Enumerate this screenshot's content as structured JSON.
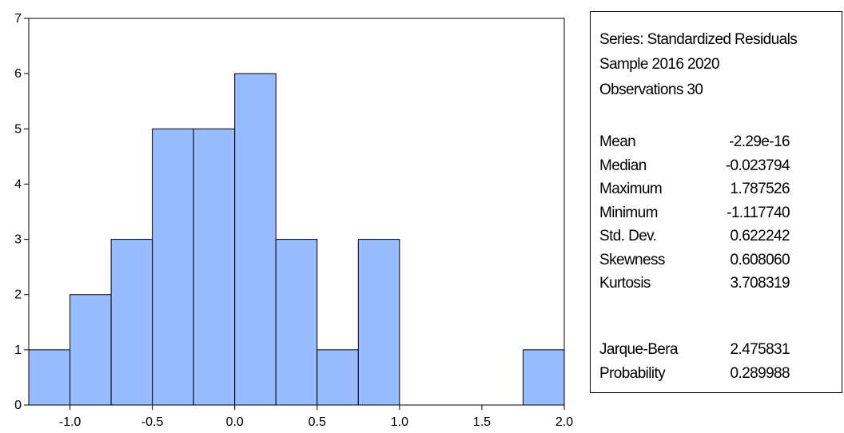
{
  "chart_data": {
    "type": "bar",
    "bin_edges": [
      -1.25,
      -1.0,
      -0.75,
      -0.5,
      -0.25,
      0.0,
      0.25,
      0.5,
      0.75,
      1.0,
      1.25,
      1.5,
      1.75,
      2.0
    ],
    "values": [
      1,
      2,
      3,
      5,
      5,
      6,
      3,
      1,
      3,
      0,
      0,
      0,
      1
    ],
    "xlim": [
      -1.25,
      2.0
    ],
    "ylim": [
      0,
      7
    ],
    "x_ticks": [
      -1.0,
      -0.5,
      0.0,
      0.5,
      1.0,
      1.5,
      2.0
    ],
    "x_tick_labels": [
      "-1.0",
      "-0.5",
      "0.0",
      "0.5",
      "1.0",
      "1.5",
      "2.0"
    ],
    "y_ticks": [
      0,
      1,
      2,
      3,
      4,
      5,
      6,
      7
    ],
    "y_tick_labels": [
      "0",
      "1",
      "2",
      "3",
      "4",
      "5",
      "6",
      "7"
    ],
    "bar_color": "#99bbff",
    "title": "",
    "xlabel": "",
    "ylabel": ""
  },
  "stats_panel": {
    "series": "Series: Standardized Residuals",
    "sample": "Sample 2016 2020",
    "observations": "Observations 30",
    "rows": [
      {
        "label": "Mean",
        "value": "-2.29e-16"
      },
      {
        "label": "Median",
        "value": "-0.023794"
      },
      {
        "label": "Maximum",
        "value": "1.787526"
      },
      {
        "label": "Minimum",
        "value": "-1.117740"
      },
      {
        "label": "Std. Dev.",
        "value": "0.622242"
      },
      {
        "label": "Skewness",
        "value": "0.608060"
      },
      {
        "label": "Kurtosis",
        "value": "3.708319"
      }
    ],
    "test_rows": [
      {
        "label": "Jarque-Bera",
        "value": "2.475831"
      },
      {
        "label": "Probability",
        "value": "0.289988"
      }
    ]
  }
}
